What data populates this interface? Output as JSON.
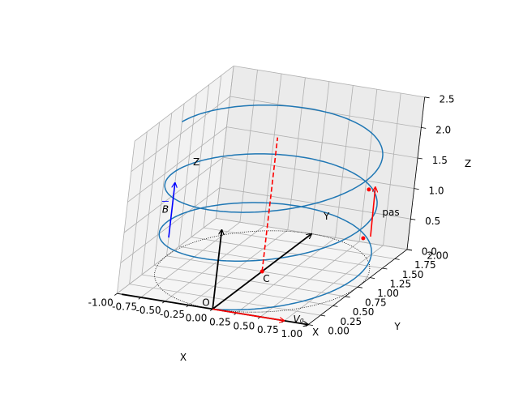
{
  "chart_data": {
    "type": "line3d",
    "title": "",
    "axes": {
      "x": {
        "label": "X",
        "range": [
          -1.0,
          1.0
        ],
        "ticks": [
          "-1.00",
          "-0.75",
          "-0.50",
          "-0.25",
          "0.00",
          "0.25",
          "0.50",
          "0.75",
          "1.00"
        ]
      },
      "y": {
        "label": "Y",
        "range": [
          0.0,
          2.0
        ],
        "ticks": [
          "0.00",
          "0.25",
          "0.50",
          "0.75",
          "1.00",
          "1.25",
          "1.50",
          "1.75",
          "2.00"
        ]
      },
      "z": {
        "label": "Z",
        "range": [
          0.0,
          2.5
        ],
        "ticks": [
          "0.0",
          "0.5",
          "1.0",
          "1.5",
          "2.0",
          "2.5"
        ]
      }
    },
    "grid": true,
    "helix": {
      "center_x": 0,
      "center_y": 1,
      "radius": 1,
      "z_start": 0,
      "z_end": 2.2,
      "turns": 2.75,
      "color": "#1f77b4"
    },
    "base_circle": {
      "center_x": 0,
      "center_y": 1,
      "radius": 1,
      "z": 0,
      "color": "#000000",
      "style": "dotted"
    },
    "axis_vectors": [
      {
        "label": "X",
        "from": [
          0,
          0,
          0
        ],
        "to": [
          1.0,
          0,
          0
        ],
        "color": "#000000"
      },
      {
        "label": "Y",
        "from": [
          0,
          0,
          0
        ],
        "to": [
          0,
          2.0,
          0
        ],
        "color": "#000000"
      },
      {
        "label": "Z",
        "from": [
          0,
          0,
          0
        ],
        "to": [
          0,
          0,
          1.3
        ],
        "color": "#000000"
      }
    ],
    "origin_label": "O",
    "center_line": {
      "label": "C",
      "x": 0,
      "y": 1,
      "z_from": 0,
      "z_to": 2.2,
      "color": "#ff0000",
      "style": "dashed"
    },
    "velocity": {
      "label": "V₀",
      "from": [
        0,
        0,
        0
      ],
      "to": [
        0.75,
        0,
        0
      ],
      "color": "#ff0000"
    },
    "field": {
      "label": "B",
      "from": [
        -1,
        1,
        0.3
      ],
      "to": [
        -1,
        1,
        1.2
      ],
      "color": "#0000ff"
    },
    "pitch": {
      "label": "pas",
      "x": 1,
      "y": 1,
      "z_low": 0.8,
      "z_high": 1.6,
      "color": "#ff0000"
    }
  }
}
